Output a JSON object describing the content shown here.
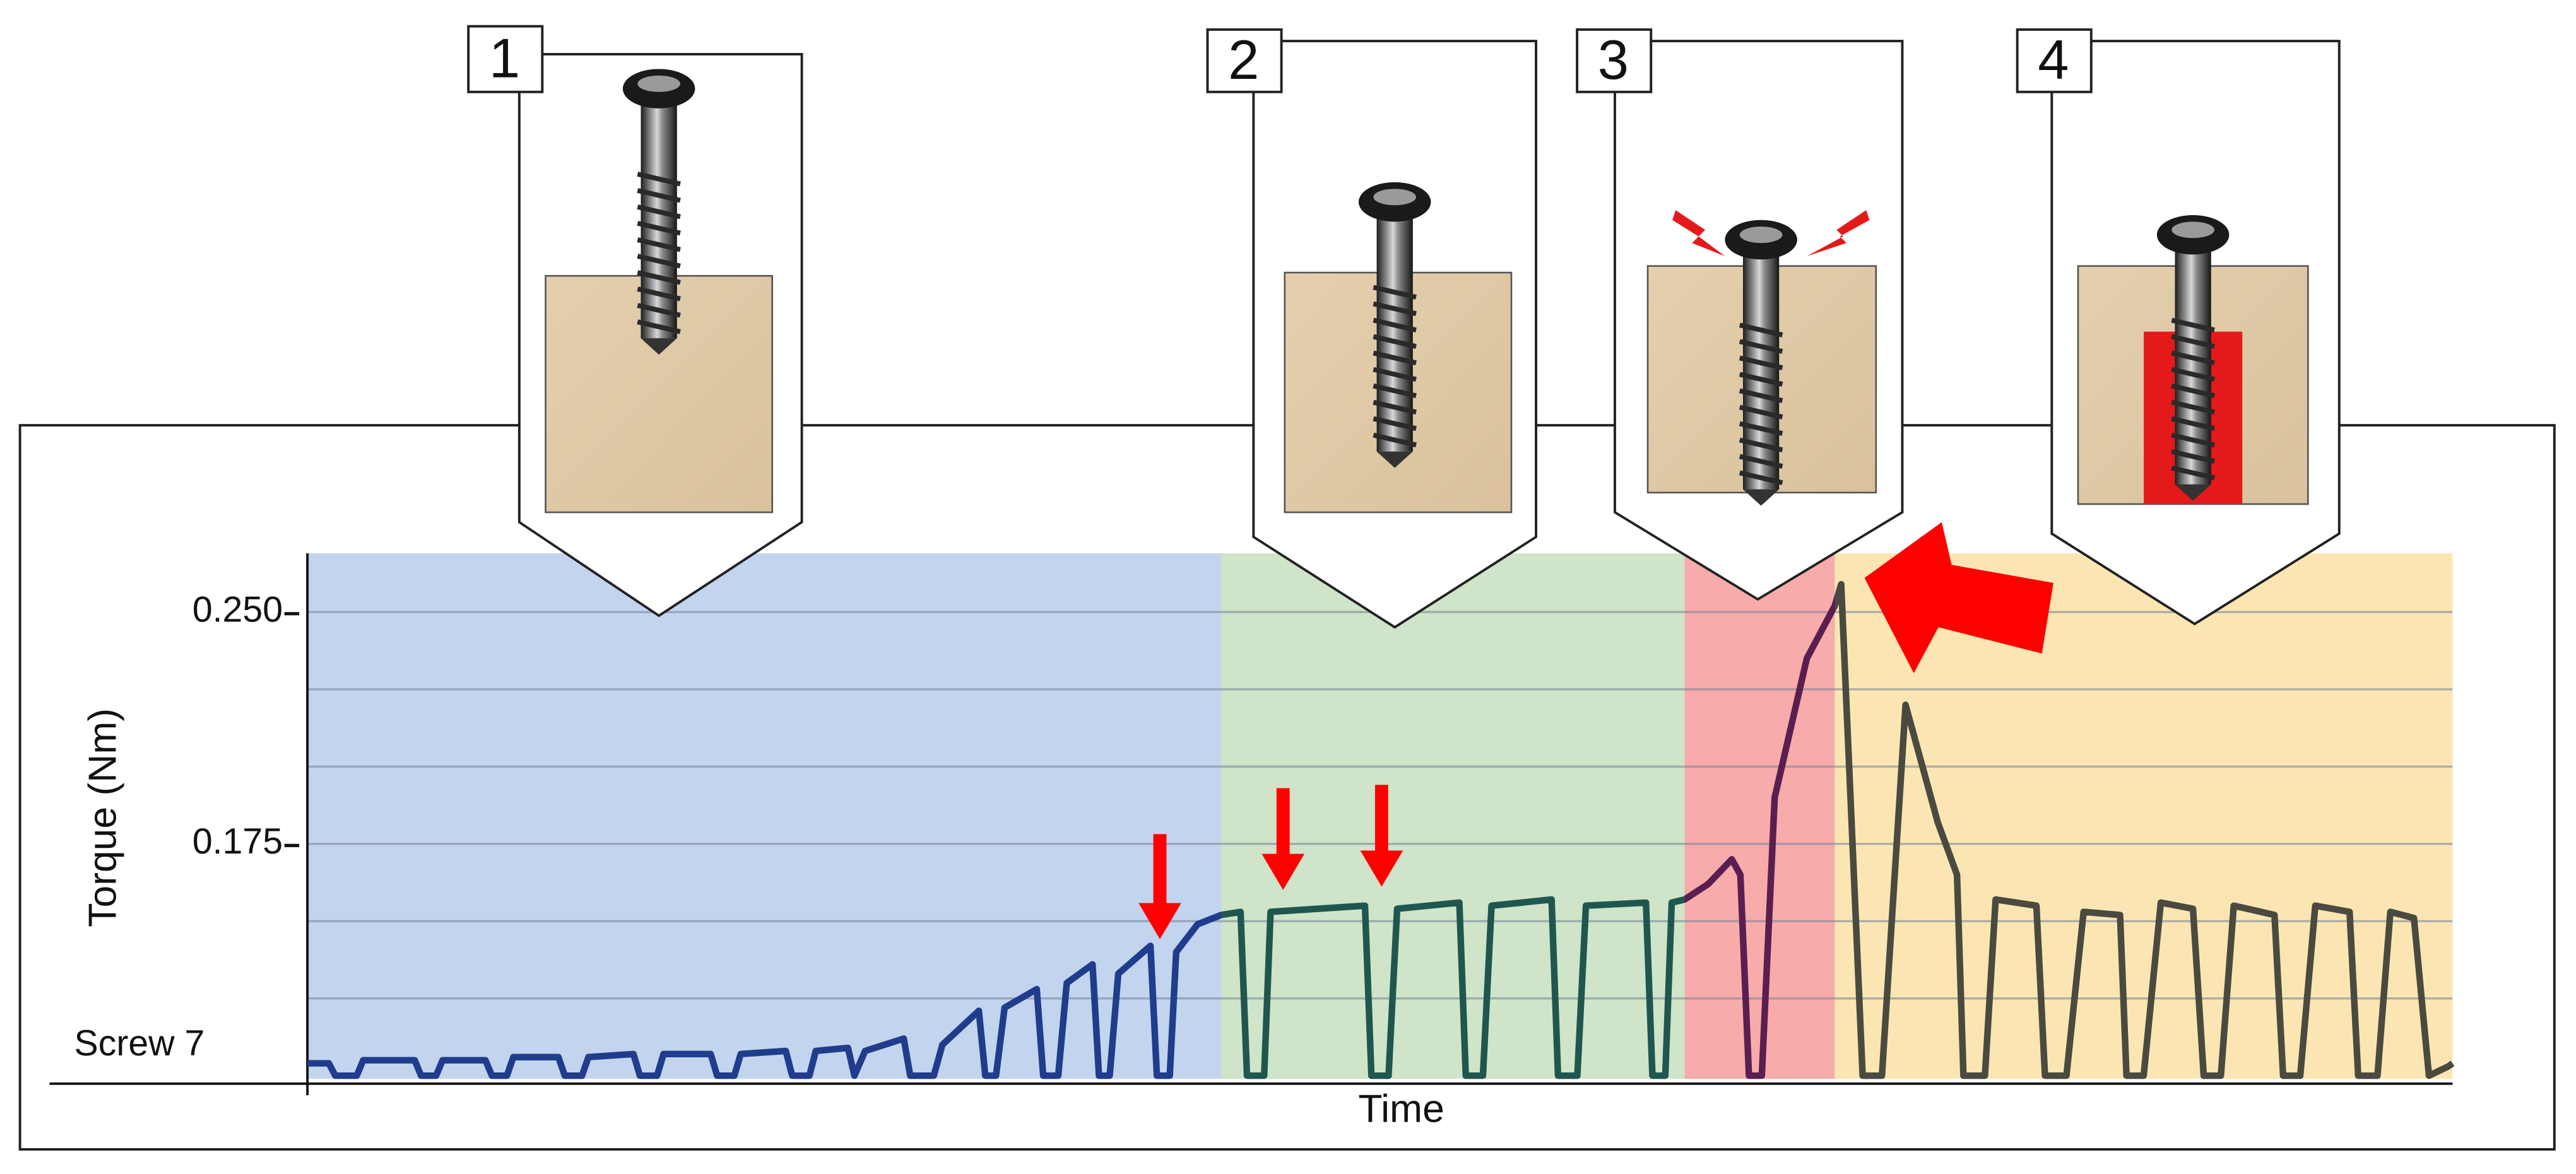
{
  "chart_data": {
    "type": "line",
    "series_label": "Screw 7",
    "ylabel": "Torque (Nm)",
    "xlabel": "Time",
    "xlim": [
      0,
      100
    ],
    "ylim": [
      0.099,
      0.269
    ],
    "yticks": [
      {
        "value": 0.25,
        "label": "0.250"
      },
      {
        "value": 0.175,
        "label": "0.175"
      }
    ],
    "minor_yticks": [
      0.125,
      0.15,
      0.2,
      0.225
    ],
    "grid": true,
    "phases": [
      {
        "label": "1",
        "start": 0,
        "end": 42.6,
        "color": "#c3d4ee",
        "line_color": "#1f3d8c"
      },
      {
        "label": "2",
        "start": 42.6,
        "end": 64.2,
        "color": "#cfe4c9",
        "line_color": "#1f5750"
      },
      {
        "label": "3",
        "start": 64.2,
        "end": 71.2,
        "color": "#f7abab",
        "line_color": "#5a1f50"
      },
      {
        "label": "4",
        "start": 71.2,
        "end": 100,
        "color": "#fbe6b3",
        "line_color": "#4a4a40"
      }
    ],
    "x": [
      0,
      1,
      1.3,
      2.3,
      2.6,
      5,
      5.3,
      6,
      6.3,
      8.3,
      8.6,
      9.3,
      9.6,
      11.7,
      12,
      12.8,
      13.1,
      15.2,
      15.5,
      16.3,
      16.6,
      18.8,
      19.1,
      19.9,
      20.2,
      22.3,
      22.6,
      23.4,
      23.7,
      25.2,
      25.5,
      26,
      27.8,
      28.1,
      29.2,
      29.6,
      31.3,
      31.6,
      32.1,
      32.5,
      34,
      34.3,
      35,
      35.4,
      36.6,
      36.9,
      37.4,
      37.8,
      39.3,
      39.6,
      40.2,
      40.5,
      41.5,
      42.6,
      43.5,
      43.8,
      44.6,
      44.9,
      49.3,
      49.6,
      50.4,
      50.8,
      53.7,
      54,
      54.8,
      55.2,
      58,
      58.3,
      59.2,
      59.6,
      62.4,
      62.7,
      63.3,
      63.6,
      64.2,
      65.3,
      66.4,
      66.8,
      67.2,
      67.8,
      68.4,
      69.9,
      71.2,
      71.5,
      72.5,
      73.4,
      74.5,
      76,
      76.9,
      77.2,
      78.2,
      78.7,
      80.6,
      81,
      82,
      82.8,
      84.5,
      84.8,
      85.6,
      86.4,
      87.9,
      88.4,
      89.2,
      89.8,
      91.7,
      92.1,
      92.9,
      93.6,
      95.2,
      95.6,
      96.5,
      97.1,
      98.2,
      98.9,
      99.8,
      100
    ],
    "values": [
      0.104,
      0.104,
      0.1,
      0.1,
      0.105,
      0.105,
      0.1,
      0.1,
      0.105,
      0.105,
      0.1,
      0.1,
      0.106,
      0.106,
      0.1,
      0.1,
      0.106,
      0.107,
      0.1,
      0.1,
      0.107,
      0.107,
      0.1,
      0.1,
      0.107,
      0.108,
      0.1,
      0.1,
      0.108,
      0.109,
      0.1,
      0.108,
      0.112,
      0.1,
      0.1,
      0.11,
      0.121,
      0.1,
      0.1,
      0.122,
      0.128,
      0.1,
      0.1,
      0.13,
      0.136,
      0.1,
      0.1,
      0.133,
      0.142,
      0.1,
      0.1,
      0.14,
      0.149,
      0.152,
      0.153,
      0.1,
      0.1,
      0.153,
      0.155,
      0.1,
      0.1,
      0.154,
      0.156,
      0.1,
      0.1,
      0.155,
      0.157,
      0.1,
      0.1,
      0.155,
      0.156,
      0.1,
      0.1,
      0.156,
      0.157,
      0.162,
      0.17,
      0.165,
      0.1,
      0.1,
      0.19,
      0.235,
      0.252,
      0.259,
      0.1,
      0.1,
      0.22,
      0.182,
      0.165,
      0.1,
      0.1,
      0.157,
      0.155,
      0.1,
      0.1,
      0.153,
      0.152,
      0.1,
      0.1,
      0.156,
      0.154,
      0.1,
      0.1,
      0.155,
      0.152,
      0.1,
      0.1,
      0.155,
      0.153,
      0.1,
      0.1,
      0.153,
      0.151,
      0.1,
      0.103,
      0.104
    ]
  }
}
